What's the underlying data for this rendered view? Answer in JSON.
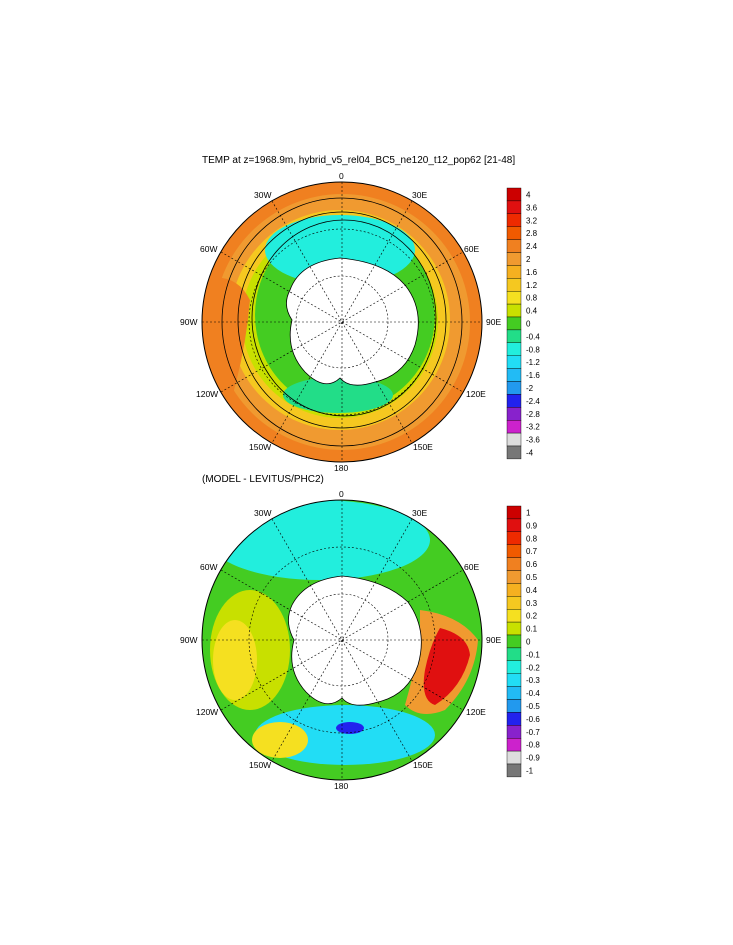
{
  "panels": [
    {
      "id": "top",
      "title": "TEMP at z=1968.9m, hybrid_v5_rel04_BC5_ne120_t12_pop62 [21-48]",
      "colorbar": {
        "labels": [
          "4",
          "3.6",
          "3.2",
          "2.8",
          "2.4",
          "2",
          "1.6",
          "1.2",
          "0.8",
          "0.4",
          "0",
          "-0.4",
          "-0.8",
          "-1.2",
          "-1.6",
          "-2",
          "-2.4",
          "-2.8",
          "-3.2",
          "-3.6",
          "-4"
        ],
        "colors": [
          "#cc0000",
          "#e01010",
          "#ee2a00",
          "#f05a00",
          "#f08020",
          "#f09a30",
          "#f5b020",
          "#f5c820",
          "#f5e020",
          "#c8e000",
          "#44cc22",
          "#22dd88",
          "#22eedd",
          "#22ddf5",
          "#22bbf5",
          "#2299ee",
          "#2222ee",
          "#8822cc",
          "#cc22cc",
          "#dddddd",
          "#777777"
        ]
      }
    },
    {
      "id": "bottom",
      "title": "(MODEL - LEVITUS/PHC2)",
      "colorbar": {
        "labels": [
          "1",
          "0.9",
          "0.8",
          "0.7",
          "0.6",
          "0.5",
          "0.4",
          "0.3",
          "0.2",
          "0.1",
          "0",
          "-0.1",
          "-0.2",
          "-0.3",
          "-0.4",
          "-0.5",
          "-0.6",
          "-0.7",
          "-0.8",
          "-0.9",
          "-1"
        ],
        "colors": [
          "#cc0000",
          "#e01010",
          "#ee2a00",
          "#f05a00",
          "#f08020",
          "#f09a30",
          "#f5b020",
          "#f5c820",
          "#f5e020",
          "#c8e000",
          "#44cc22",
          "#22dd88",
          "#22eedd",
          "#22ddf5",
          "#22bbf5",
          "#2299ee",
          "#2222ee",
          "#8822cc",
          "#cc22cc",
          "#dddddd",
          "#777777"
        ]
      }
    }
  ],
  "longitude_labels": {
    "0": "0",
    "30E": "30E",
    "60E": "60E",
    "90E": "90E",
    "120E": "120E",
    "150E": "150E",
    "180": "180",
    "150W": "150W",
    "120W": "120W",
    "90W": "90W",
    "60W": "60W",
    "30W": "30W"
  }
}
